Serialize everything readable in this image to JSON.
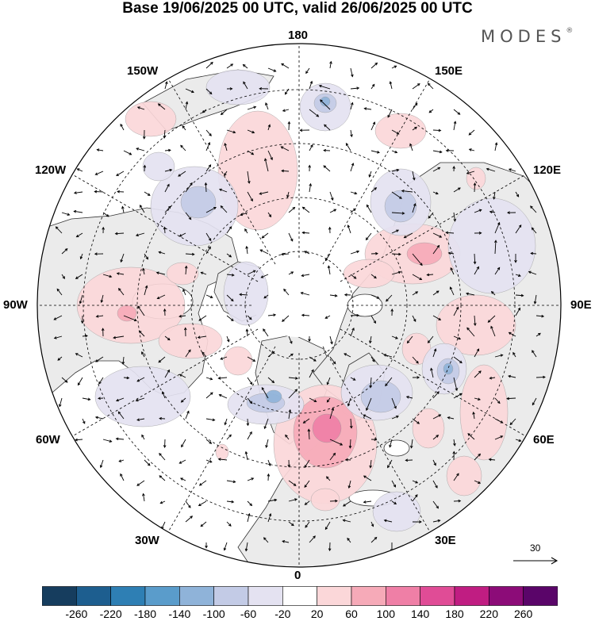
{
  "title": "Base 19/06/2025 00 UTC, valid 26/06/2025 00 UTC",
  "brand": {
    "name": "MODES",
    "mark": "®"
  },
  "longitude_labels": {
    "lon_180": "180",
    "lon_150E": "150E",
    "lon_120E": "120E",
    "lon_90E": "90E",
    "lon_60E": "60E",
    "lon_30E": "30E",
    "lon_0": "0",
    "lon_30W": "30W",
    "lon_60W": "60W",
    "lon_90W": "90W",
    "lon_120W": "120W",
    "lon_150W": "150W"
  },
  "projection": "polar stereographic, north pole",
  "reference_vector": {
    "label": "30"
  },
  "colorbar": {
    "ticks": [
      "-260",
      "-220",
      "-180",
      "-140",
      "-100",
      "-60",
      "-20",
      "20",
      "60",
      "100",
      "140",
      "180",
      "220",
      "260"
    ],
    "colors": [
      "#163d5e",
      "#1d5e8f",
      "#2e7fb4",
      "#5a9ccb",
      "#8fb3d9",
      "#c3cbe6",
      "#e4e2f1",
      "#ffffff",
      "#fbd7d9",
      "#f6aab8",
      "#ef7fa6",
      "#e04c96",
      "#c01d82",
      "#8c0c78",
      "#5a0569"
    ]
  },
  "anomaly_colors": {
    "weak_negative": "#e4e2f1",
    "negative": "#c3cbe6",
    "strong_negative": "#8fb3d9",
    "weak_positive": "#fbd7d9",
    "positive": "#f6aab8",
    "strong_positive": "#ef7fa6",
    "land": "#ebebeb"
  }
}
